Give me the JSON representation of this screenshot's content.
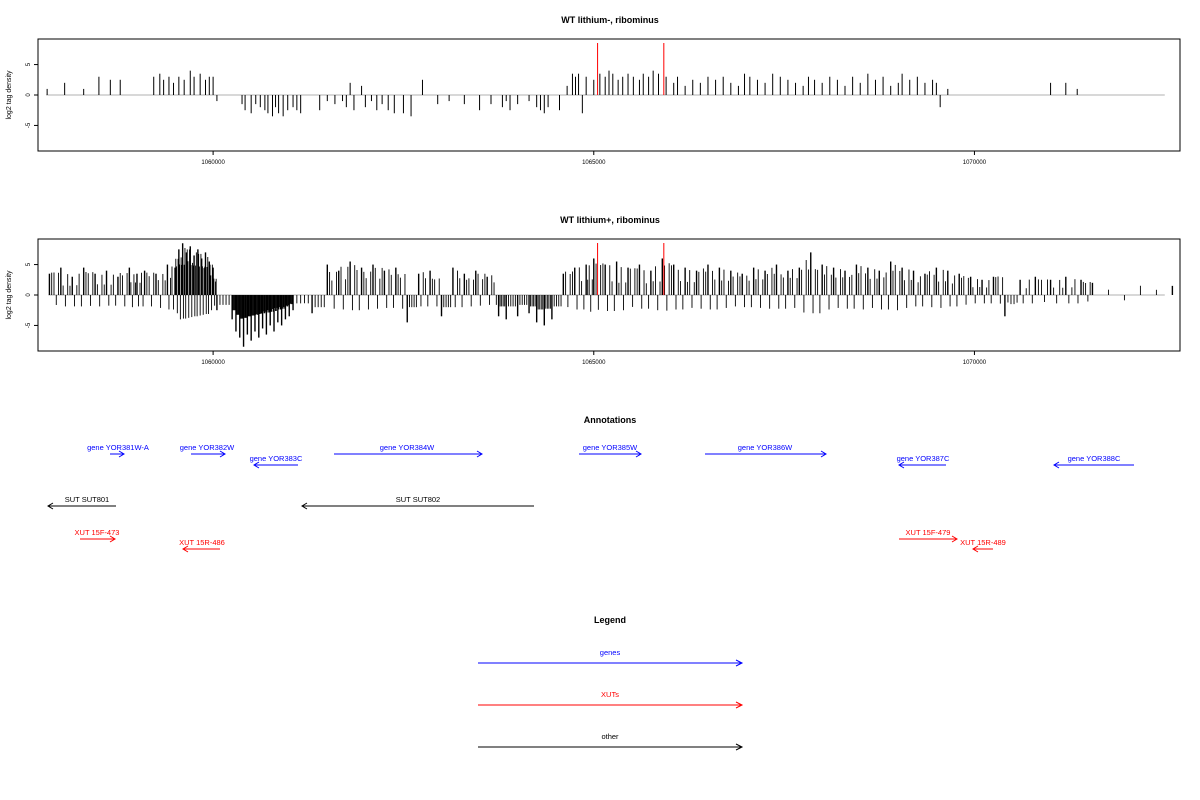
{
  "colors": {
    "gene": "#0000ff",
    "xut": "#ff0000",
    "other": "#000000",
    "marker": "#ff0000",
    "baseline": "#999999"
  },
  "chart_data": [
    {
      "type": "bar",
      "title": "WT lithium-, ribominus",
      "ylabel": "log2 tag density",
      "xlim": [
        1057700,
        1072700
      ],
      "ylim": [
        -9.2,
        9.2
      ],
      "yticks": [
        -5,
        0,
        5
      ],
      "xticks": [
        1060000,
        1065000,
        1070000
      ],
      "markers": [
        1065050,
        1065920
      ],
      "series": [
        {
          "name": "",
          "x": [
            1057820,
            1058050,
            1058300,
            1058500,
            1058650,
            1058780,
            1059220,
            1059300,
            1059350,
            1059420,
            1059480,
            1059550,
            1059620,
            1059700,
            1059750,
            1059830,
            1059900,
            1059950,
            1060000,
            1060050,
            1060380,
            1060420,
            1060500,
            1060560,
            1060620,
            1060680,
            1060720,
            1060780,
            1060820,
            1060860,
            1060920,
            1060980,
            1061050,
            1061100,
            1061150,
            1061400,
            1061500,
            1061600,
            1061700,
            1061750,
            1061800,
            1061850,
            1061950,
            1062000,
            1062080,
            1062150,
            1062220,
            1062300,
            1062380,
            1062500,
            1062600,
            1062750,
            1062950,
            1063100,
            1063300,
            1063500,
            1063650,
            1063800,
            1063850,
            1063900,
            1064000,
            1064150,
            1064250,
            1064300,
            1064350,
            1064400,
            1064550,
            1064650,
            1064720,
            1064760,
            1064800,
            1064850,
            1064900,
            1065000,
            1065080,
            1065150,
            1065200,
            1065250,
            1065320,
            1065380,
            1065450,
            1065520,
            1065600,
            1065650,
            1065720,
            1065780,
            1065850,
            1065950,
            1066050,
            1066100,
            1066200,
            1066300,
            1066400,
            1066500,
            1066600,
            1066700,
            1066800,
            1066900,
            1066980,
            1067050,
            1067150,
            1067250,
            1067350,
            1067450,
            1067550,
            1067650,
            1067750,
            1067820,
            1067900,
            1068000,
            1068100,
            1068200,
            1068300,
            1068400,
            1068500,
            1068600,
            1068700,
            1068800,
            1068900,
            1069000,
            1069050,
            1069150,
            1069250,
            1069350,
            1069450,
            1069500,
            1069550,
            1069650,
            1071000,
            1071200,
            1071350
          ],
          "values": [
            1.0,
            2.0,
            1.0,
            3.0,
            2.5,
            2.5,
            3.0,
            3.5,
            2.5,
            3.0,
            2.0,
            3.0,
            2.5,
            4.0,
            3.0,
            3.5,
            2.5,
            3.0,
            3.0,
            -1.0,
            -1.5,
            -2.5,
            -3.0,
            -1.5,
            -2.0,
            -2.5,
            -3.0,
            -3.5,
            -2.0,
            -3.0,
            -3.5,
            -2.5,
            -2.0,
            -2.5,
            -3.0,
            -2.5,
            -1.0,
            -1.5,
            -1.0,
            -2.0,
            2.0,
            -2.5,
            1.5,
            -2.0,
            -1.0,
            -2.5,
            -1.5,
            -2.5,
            -3.0,
            -3.0,
            -3.5,
            2.5,
            -1.5,
            -1.0,
            -1.5,
            -2.5,
            -1.5,
            -2.0,
            -1.0,
            -2.5,
            -1.5,
            -1.0,
            -2.0,
            -2.5,
            -3.0,
            -2.0,
            -2.5,
            1.5,
            3.5,
            3.0,
            3.5,
            -3.0,
            3.0,
            2.5,
            3.5,
            3.0,
            4.0,
            3.5,
            2.5,
            3.0,
            3.5,
            3.0,
            2.5,
            3.5,
            3.0,
            4.0,
            3.5,
            3.0,
            2.0,
            3.0,
            1.5,
            2.5,
            2.0,
            3.0,
            2.5,
            3.0,
            2.0,
            1.5,
            3.5,
            3.0,
            2.5,
            2.0,
            3.5,
            3.0,
            2.5,
            2.0,
            1.5,
            3.0,
            2.5,
            2.0,
            3.0,
            2.5,
            1.5,
            3.0,
            2.0,
            3.5,
            2.5,
            3.0,
            1.5,
            2.0,
            3.5,
            2.5,
            3.0,
            2.0,
            2.5,
            2.0,
            -2.0,
            1.0,
            2.0,
            2.0,
            1.0
          ]
        }
      ]
    },
    {
      "type": "bar",
      "title": "WT lithium+, ribominus",
      "ylabel": "log2 tag density",
      "xlim": [
        1057700,
        1072700
      ],
      "ylim": [
        -9.2,
        9.2
      ],
      "yticks": [
        -5,
        0,
        5
      ],
      "xticks": [
        1060000,
        1065000,
        1070000
      ],
      "markers": [
        1065050,
        1065920
      ],
      "series": [
        {
          "name": "",
          "x": [
            1057850,
            1058000,
            1058150,
            1058300,
            1058450,
            1058600,
            1058750,
            1058900,
            1059000,
            1059100,
            1059250,
            1059400,
            1059500,
            1059550,
            1059600,
            1059650,
            1059700,
            1059750,
            1059800,
            1059850,
            1059900,
            1059950,
            1060000,
            1060050,
            1060250,
            1060300,
            1060350,
            1060400,
            1060450,
            1060500,
            1060550,
            1060600,
            1060650,
            1060700,
            1060750,
            1060800,
            1060850,
            1060900,
            1060950,
            1061000,
            1061050,
            1061300,
            1061500,
            1061650,
            1061800,
            1061950,
            1062100,
            1062250,
            1062400,
            1062550,
            1062700,
            1062850,
            1063000,
            1063150,
            1063300,
            1063450,
            1063600,
            1063750,
            1063850,
            1064000,
            1064150,
            1064250,
            1064350,
            1064450,
            1064600,
            1064750,
            1064900,
            1065000,
            1065150,
            1065300,
            1065450,
            1065600,
            1065750,
            1065900,
            1066050,
            1066200,
            1066350,
            1066500,
            1066650,
            1066800,
            1066950,
            1067100,
            1067250,
            1067400,
            1067550,
            1067700,
            1067850,
            1068000,
            1068150,
            1068300,
            1068450,
            1068600,
            1068750,
            1068900,
            1069050,
            1069200,
            1069350,
            1069500,
            1069650,
            1069800,
            1069950,
            1070100,
            1070250,
            1070400,
            1070600,
            1070800,
            1071000,
            1071200,
            1071400,
            1071550,
            1072600
          ],
          "values": [
            3.5,
            4.5,
            3.0,
            4.5,
            3.5,
            4.0,
            3.0,
            4.5,
            3.5,
            4.0,
            3.5,
            5.0,
            4.5,
            7.5,
            8.5,
            7.0,
            8.0,
            6.5,
            7.5,
            6.0,
            7.0,
            5.5,
            4.5,
            -2.5,
            -4.0,
            -6.0,
            -7.0,
            -8.5,
            -6.5,
            -7.5,
            -6.0,
            -7.0,
            -5.5,
            -6.5,
            -5.0,
            -6.0,
            -4.5,
            -5.0,
            -4.0,
            -3.5,
            -2.5,
            -3.0,
            5.0,
            4.0,
            5.5,
            4.5,
            5.0,
            4.0,
            4.5,
            -4.5,
            3.5,
            4.0,
            -3.5,
            4.5,
            3.5,
            4.0,
            3.0,
            -3.5,
            -4.0,
            -3.5,
            -3.0,
            -4.5,
            -5.0,
            -4.0,
            3.5,
            4.5,
            5.0,
            6.0,
            5.0,
            5.5,
            4.5,
            5.0,
            4.0,
            6.0,
            5.0,
            4.5,
            4.0,
            5.0,
            4.5,
            4.0,
            3.5,
            4.5,
            4.0,
            5.0,
            4.0,
            4.5,
            7.0,
            5.0,
            4.5,
            4.0,
            5.0,
            4.5,
            4.0,
            5.5,
            4.5,
            4.0,
            3.5,
            4.5,
            4.0,
            3.5,
            3.0,
            2.5,
            3.0,
            -3.5,
            2.5,
            3.0,
            2.5,
            3.0,
            2.5,
            2.0,
            1.5
          ]
        }
      ]
    }
  ],
  "annotations": {
    "title": "Annotations",
    "genes": [
      {
        "label": "gene YOR381W-A",
        "dir": "right"
      },
      {
        "label": "gene YOR382W",
        "dir": "right"
      },
      {
        "label": "gene YOR383C",
        "dir": "left"
      },
      {
        "label": "gene YOR384W",
        "dir": "right"
      },
      {
        "label": "gene YOR385W",
        "dir": "right"
      },
      {
        "label": "gene YOR386W",
        "dir": "right"
      },
      {
        "label": "gene YOR387C",
        "dir": "left"
      },
      {
        "label": "gene YOR388C",
        "dir": "left"
      }
    ],
    "other": [
      {
        "label": "SUT SUT801",
        "dir": "left"
      },
      {
        "label": "SUT SUT802",
        "dir": "left"
      }
    ],
    "xuts": [
      {
        "label": "XUT 15F-473",
        "dir": "right"
      },
      {
        "label": "XUT 15R-486",
        "dir": "left"
      },
      {
        "label": "XUT 15F-479",
        "dir": "right"
      },
      {
        "label": "XUT 15R-489",
        "dir": "left"
      }
    ]
  },
  "legend": {
    "title": "Legend",
    "items": [
      {
        "label": "genes",
        "kind": "gene"
      },
      {
        "label": "XUTs",
        "kind": "xut"
      },
      {
        "label": "other",
        "kind": "other"
      }
    ]
  }
}
